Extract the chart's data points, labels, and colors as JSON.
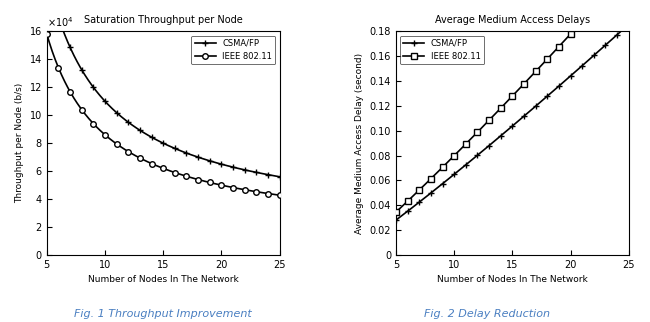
{
  "title1": "Saturation Throughput per Node",
  "title2": "Average Medium Access Delays",
  "xlabel": "Number of Nodes In The Network",
  "ylabel1": "Throughput per Node (b/s)",
  "ylabel2": "Average Medium Access Delay (second)",
  "caption1": "Fig. 1 Throughput Improvement",
  "caption2": "Fig. 2 Delay Reduction",
  "legend_csma": "CSMA/FP",
  "legend_ieee": "IEEE 802.11",
  "line_color": "#000000",
  "bg_color": "#ffffff"
}
